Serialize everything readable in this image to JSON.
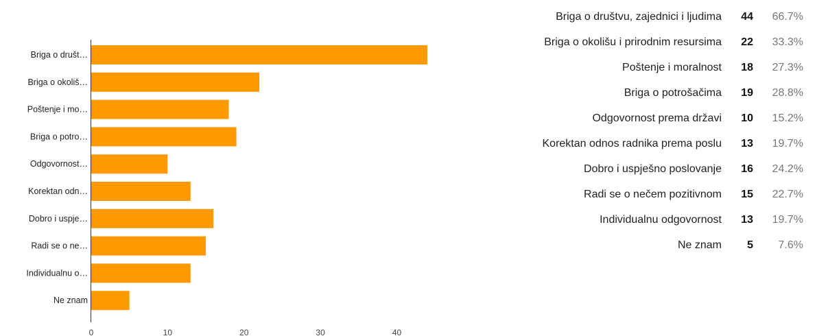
{
  "chart_data": {
    "type": "bar",
    "orientation": "horizontal",
    "categories": [
      "Briga o društvu, zajednici i ljudima",
      "Briga o okolišu i prirodnim resursima",
      "Poštenje i moralnost",
      "Briga o potrošačima",
      "Odgovornost prema državi",
      "Korektan odnos radnika prema poslu",
      "Dobro i uspješno poslovanje",
      "Radi se o nečem pozitivnom",
      "Individualnu odgovornost",
      "Ne znam"
    ],
    "category_labels_short": [
      "Briga o društ…",
      "Briga o okoliš…",
      "Poštenje i mo…",
      "Briga o potro…",
      "Odgovornost…",
      "Korektan odn…",
      "Dobro i uspje…",
      "Radi se o ne…",
      "Individualnu o…",
      "Ne znam"
    ],
    "values": [
      44,
      22,
      18,
      19,
      10,
      13,
      16,
      15,
      13,
      5
    ],
    "percentages": [
      "66.7%",
      "33.3%",
      "27.3%",
      "28.8%",
      "15.2%",
      "19.7%",
      "24.2%",
      "22.7%",
      "19.7%",
      "7.6%"
    ],
    "xticks": [
      "0",
      "10",
      "20",
      "30",
      "40"
    ],
    "xlim": [
      0,
      44
    ],
    "grid": false,
    "bar_color": "#ff9900",
    "title": "",
    "xlabel": "",
    "ylabel": ""
  }
}
